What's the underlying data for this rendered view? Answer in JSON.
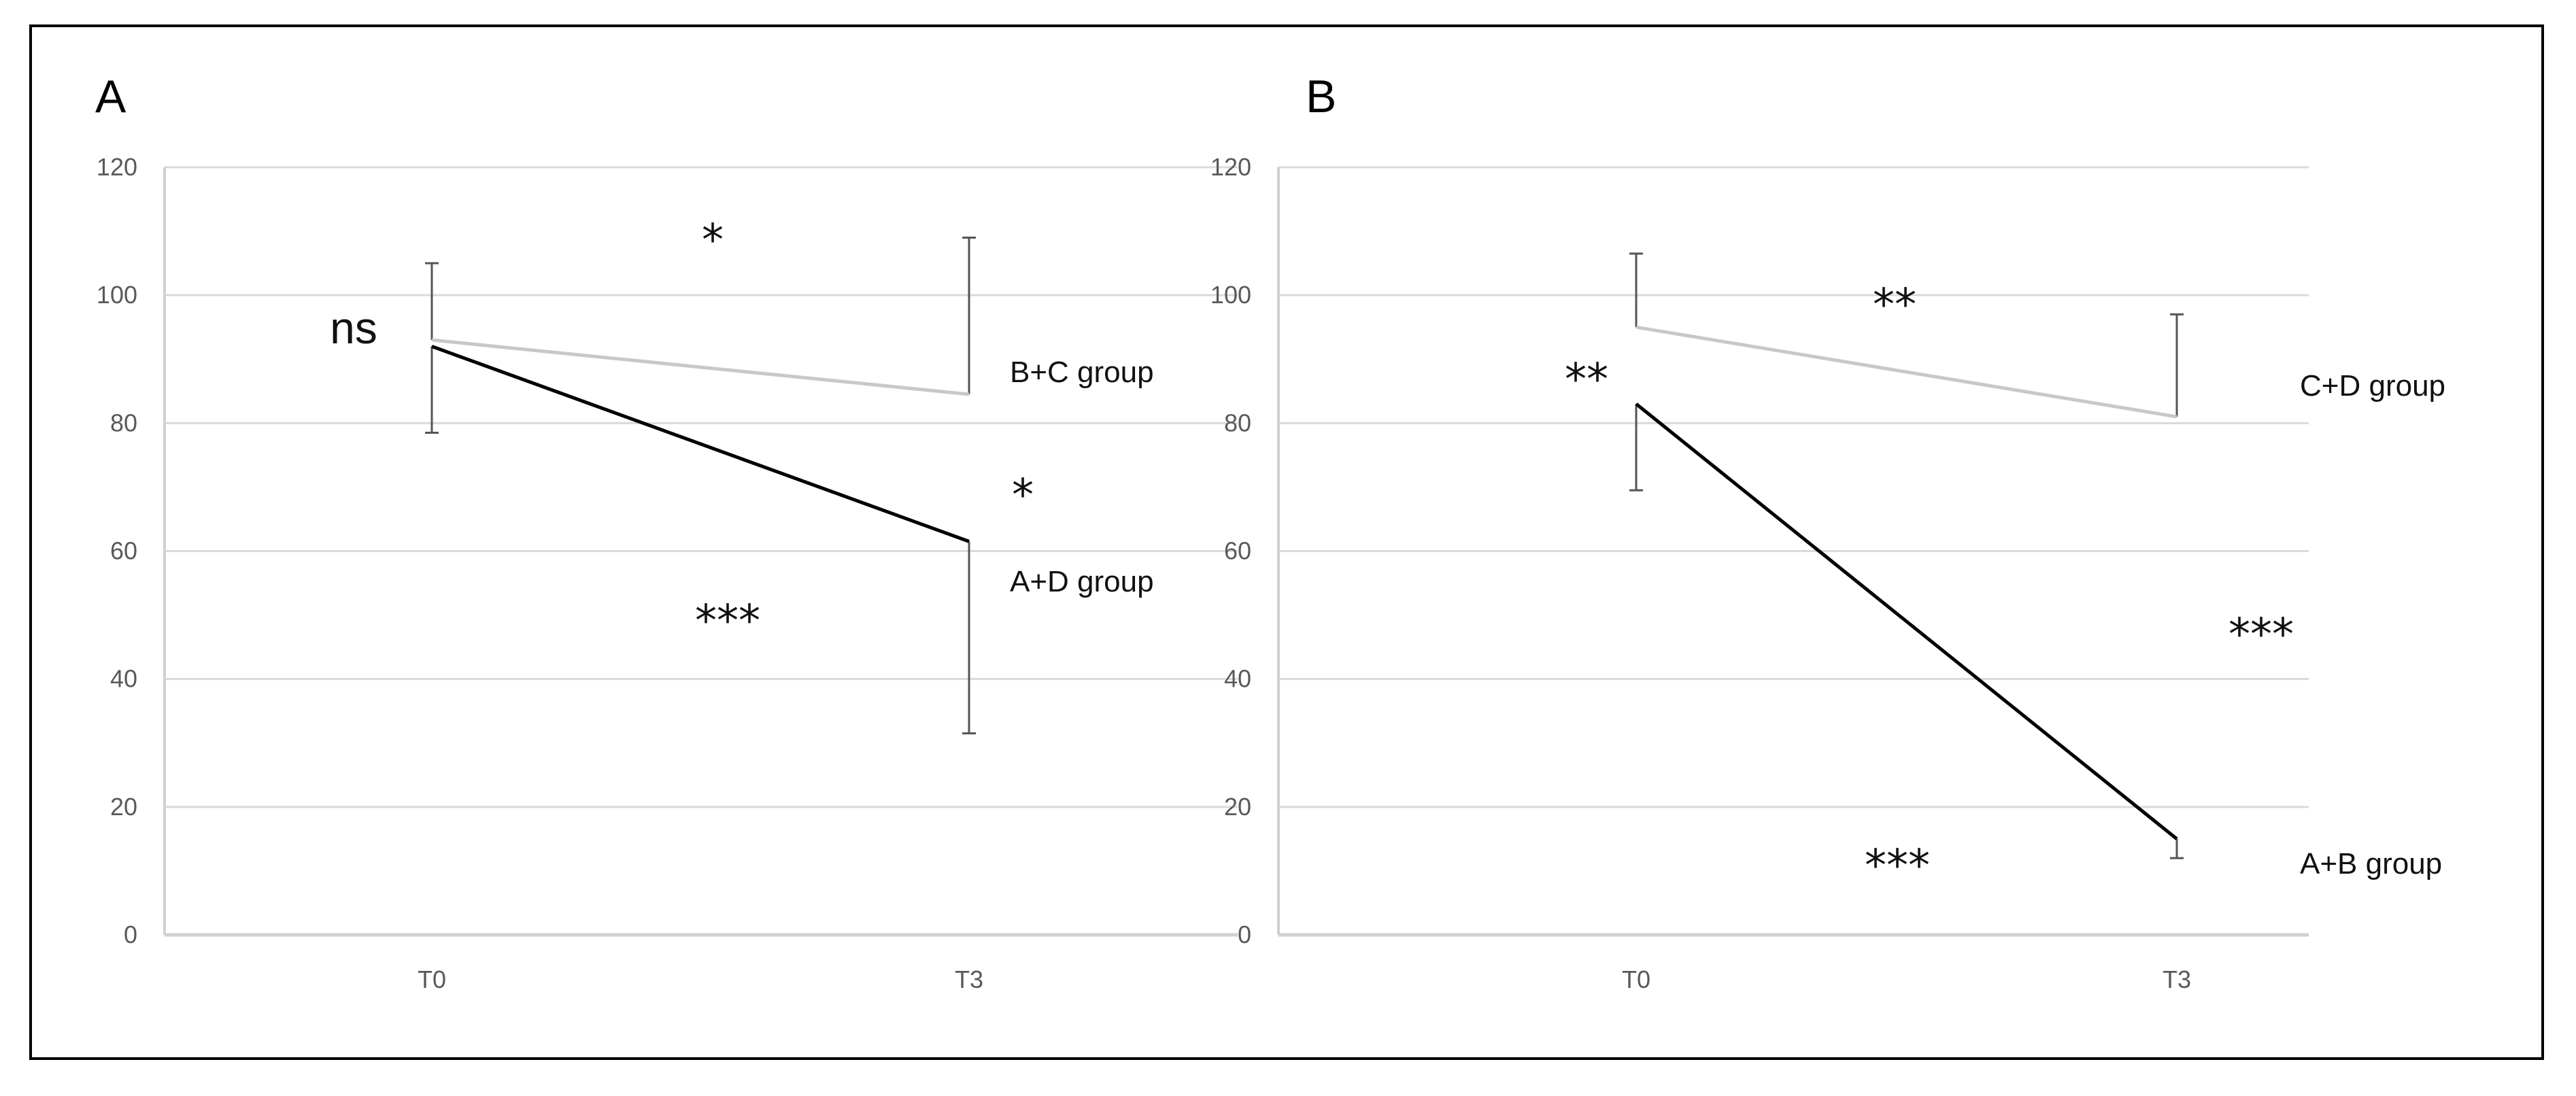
{
  "chart_data": [
    {
      "type": "line",
      "panel_label": "A",
      "categories": [
        "T0",
        "T3"
      ],
      "ylim": [
        0,
        120
      ],
      "yticks": [
        0,
        20,
        40,
        60,
        80,
        100,
        120
      ],
      "grid": true,
      "series": [
        {
          "name": "B+C group",
          "color": "#c8c8c8",
          "values": [
            93,
            84.5
          ],
          "error_upper": [
            105,
            109
          ],
          "error_lower": [
            null,
            null
          ]
        },
        {
          "name": "A+D group",
          "color": "#000000",
          "values": [
            92,
            61.5
          ],
          "error_upper": [
            null,
            null
          ],
          "error_lower": [
            78.5,
            31.5
          ]
        }
      ],
      "annotations": [
        "ns",
        "*",
        "*",
        "***"
      ]
    },
    {
      "type": "line",
      "panel_label": "B",
      "categories": [
        "T0",
        "T3"
      ],
      "ylim": [
        0,
        120
      ],
      "yticks": [
        0,
        20,
        40,
        60,
        80,
        100,
        120
      ],
      "grid": true,
      "series": [
        {
          "name": "C+D group",
          "color": "#c8c8c8",
          "values": [
            95,
            81
          ],
          "error_upper": [
            106.5,
            97
          ],
          "error_lower": [
            null,
            null
          ]
        },
        {
          "name": "A+B group",
          "color": "#000000",
          "values": [
            83,
            15
          ],
          "error_upper": [
            null,
            null
          ],
          "error_lower": [
            69.5,
            12
          ]
        }
      ],
      "annotations": [
        "**",
        "**",
        "***",
        "***"
      ]
    }
  ]
}
